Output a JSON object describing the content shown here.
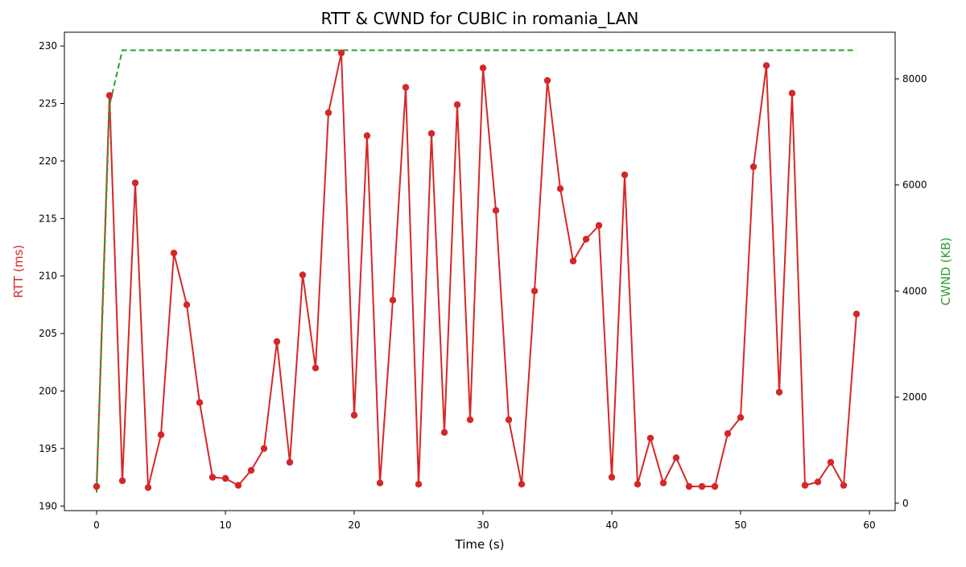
{
  "chart_data": {
    "type": "line",
    "title": "RTT & CWND for CUBIC in romania_LAN",
    "xlabel": "Time (s)",
    "ylabel": "RTT (ms)",
    "y2label": "CWND (KB)",
    "xlim": [
      -2.5,
      62
    ],
    "ylim": [
      189.6,
      231.2
    ],
    "y2lim": [
      -140,
      8880
    ],
    "xticks": [
      "0",
      "10",
      "20",
      "30",
      "40",
      "50",
      "60"
    ],
    "yticks": [
      "190",
      "195",
      "200",
      "205",
      "210",
      "215",
      "220",
      "225",
      "230"
    ],
    "y2ticks": [
      "0",
      "2000",
      "4000",
      "6000",
      "8000"
    ],
    "grid": false,
    "colors": {
      "rtt": "#d62728",
      "cwnd": "#2ca02c"
    },
    "series": [
      {
        "axis": "left",
        "style": "solid line with circle markers",
        "x": [
          0,
          1,
          2,
          3,
          4,
          5,
          6,
          7,
          8,
          9,
          10,
          11,
          12,
          13,
          14,
          15,
          16,
          17,
          18,
          19,
          20,
          21,
          22,
          23,
          24,
          25,
          26,
          27,
          28,
          29,
          30,
          31,
          32,
          33,
          34,
          35,
          36,
          37,
          38,
          39,
          40,
          41,
          42,
          43,
          44,
          45,
          46,
          47,
          48,
          49,
          50,
          51,
          52,
          53,
          54,
          55,
          56,
          57,
          58,
          59
        ],
        "values": [
          191.7,
          225.7,
          192.2,
          218.1,
          191.6,
          196.2,
          212.0,
          207.5,
          199.0,
          192.5,
          192.4,
          191.8,
          193.1,
          195.0,
          204.3,
          193.8,
          210.1,
          202.0,
          224.2,
          229.4,
          197.9,
          222.2,
          192.0,
          207.9,
          226.4,
          191.9,
          222.4,
          196.4,
          224.9,
          197.5,
          228.1,
          215.7,
          197.5,
          191.9,
          208.7,
          227.0,
          217.6,
          211.3,
          213.2,
          214.4,
          192.5,
          218.8,
          191.9,
          195.9,
          192.0,
          194.2,
          191.7,
          191.7,
          191.7,
          196.3,
          197.7,
          219.5,
          228.3,
          199.9,
          225.9,
          191.8,
          192.1,
          193.8,
          191.8,
          206.7
        ]
      },
      {
        "axis": "right",
        "style": "dashed line",
        "x": [
          0,
          1,
          2,
          59
        ],
        "values": [
          200,
          7500,
          8540,
          8540
        ]
      }
    ]
  }
}
